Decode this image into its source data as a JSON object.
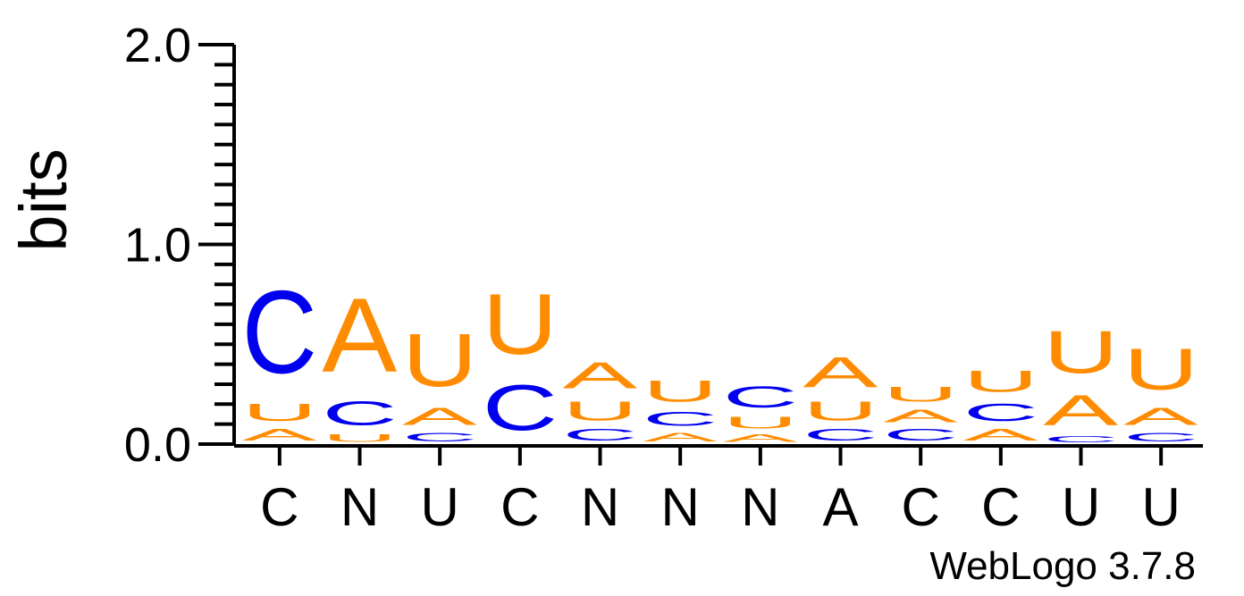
{
  "chart_data": {
    "type": "sequence-logo",
    "ylabel": "bits",
    "ylim": [
      0,
      2.0
    ],
    "yticks": [
      "0.0",
      "1.0",
      "2.0"
    ],
    "colors": {
      "A": "#ff8c00",
      "U": "#ff8c00",
      "C": "#0000ee"
    },
    "positions": [
      {
        "label": "C",
        "stack": [
          {
            "letter": "A",
            "bits": 0.09
          },
          {
            "letter": "U",
            "bits": 0.14
          },
          {
            "letter": "C",
            "bits": 0.66
          }
        ]
      },
      {
        "label": "N",
        "stack": [
          {
            "letter": "U",
            "bits": 0.06
          },
          {
            "letter": "C",
            "bits": 0.19
          },
          {
            "letter": "A",
            "bits": 0.59
          }
        ]
      },
      {
        "label": "U",
        "stack": [
          {
            "letter": "C",
            "bits": 0.07
          },
          {
            "letter": "A",
            "bits": 0.14
          },
          {
            "letter": "U",
            "bits": 0.42
          }
        ]
      },
      {
        "label": "C",
        "stack": [
          {
            "letter": "C",
            "bits": 0.36
          },
          {
            "letter": "U",
            "bits": 0.48
          }
        ]
      },
      {
        "label": "N",
        "stack": [
          {
            "letter": "C",
            "bits": 0.09
          },
          {
            "letter": "U",
            "bits": 0.15
          },
          {
            "letter": "A",
            "bits": 0.21
          }
        ]
      },
      {
        "label": "N",
        "stack": [
          {
            "letter": "A",
            "bits": 0.07
          },
          {
            "letter": "C",
            "bits": 0.11
          },
          {
            "letter": "U",
            "bits": 0.17
          }
        ]
      },
      {
        "label": "N",
        "stack": [
          {
            "letter": "A",
            "bits": 0.06
          },
          {
            "letter": "U",
            "bits": 0.09
          },
          {
            "letter": "C",
            "bits": 0.17
          }
        ]
      },
      {
        "label": "A",
        "stack": [
          {
            "letter": "C",
            "bits": 0.09
          },
          {
            "letter": "U",
            "bits": 0.15
          },
          {
            "letter": "A",
            "bits": 0.24
          }
        ]
      },
      {
        "label": "C",
        "stack": [
          {
            "letter": "C",
            "bits": 0.09
          },
          {
            "letter": "A",
            "bits": 0.1
          },
          {
            "letter": "U",
            "bits": 0.12
          }
        ]
      },
      {
        "label": "C",
        "stack": [
          {
            "letter": "A",
            "bits": 0.09
          },
          {
            "letter": "C",
            "bits": 0.14
          },
          {
            "letter": "U",
            "bits": 0.17
          }
        ]
      },
      {
        "label": "U",
        "stack": [
          {
            "letter": "C",
            "bits": 0.05
          },
          {
            "letter": "A",
            "bits": 0.24
          },
          {
            "letter": "U",
            "bits": 0.34
          }
        ]
      },
      {
        "label": "U",
        "stack": [
          {
            "letter": "C",
            "bits": 0.07
          },
          {
            "letter": "A",
            "bits": 0.14
          },
          {
            "letter": "U",
            "bits": 0.33
          }
        ]
      }
    ]
  },
  "footer": {
    "credit": "WebLogo 3.7.8"
  }
}
